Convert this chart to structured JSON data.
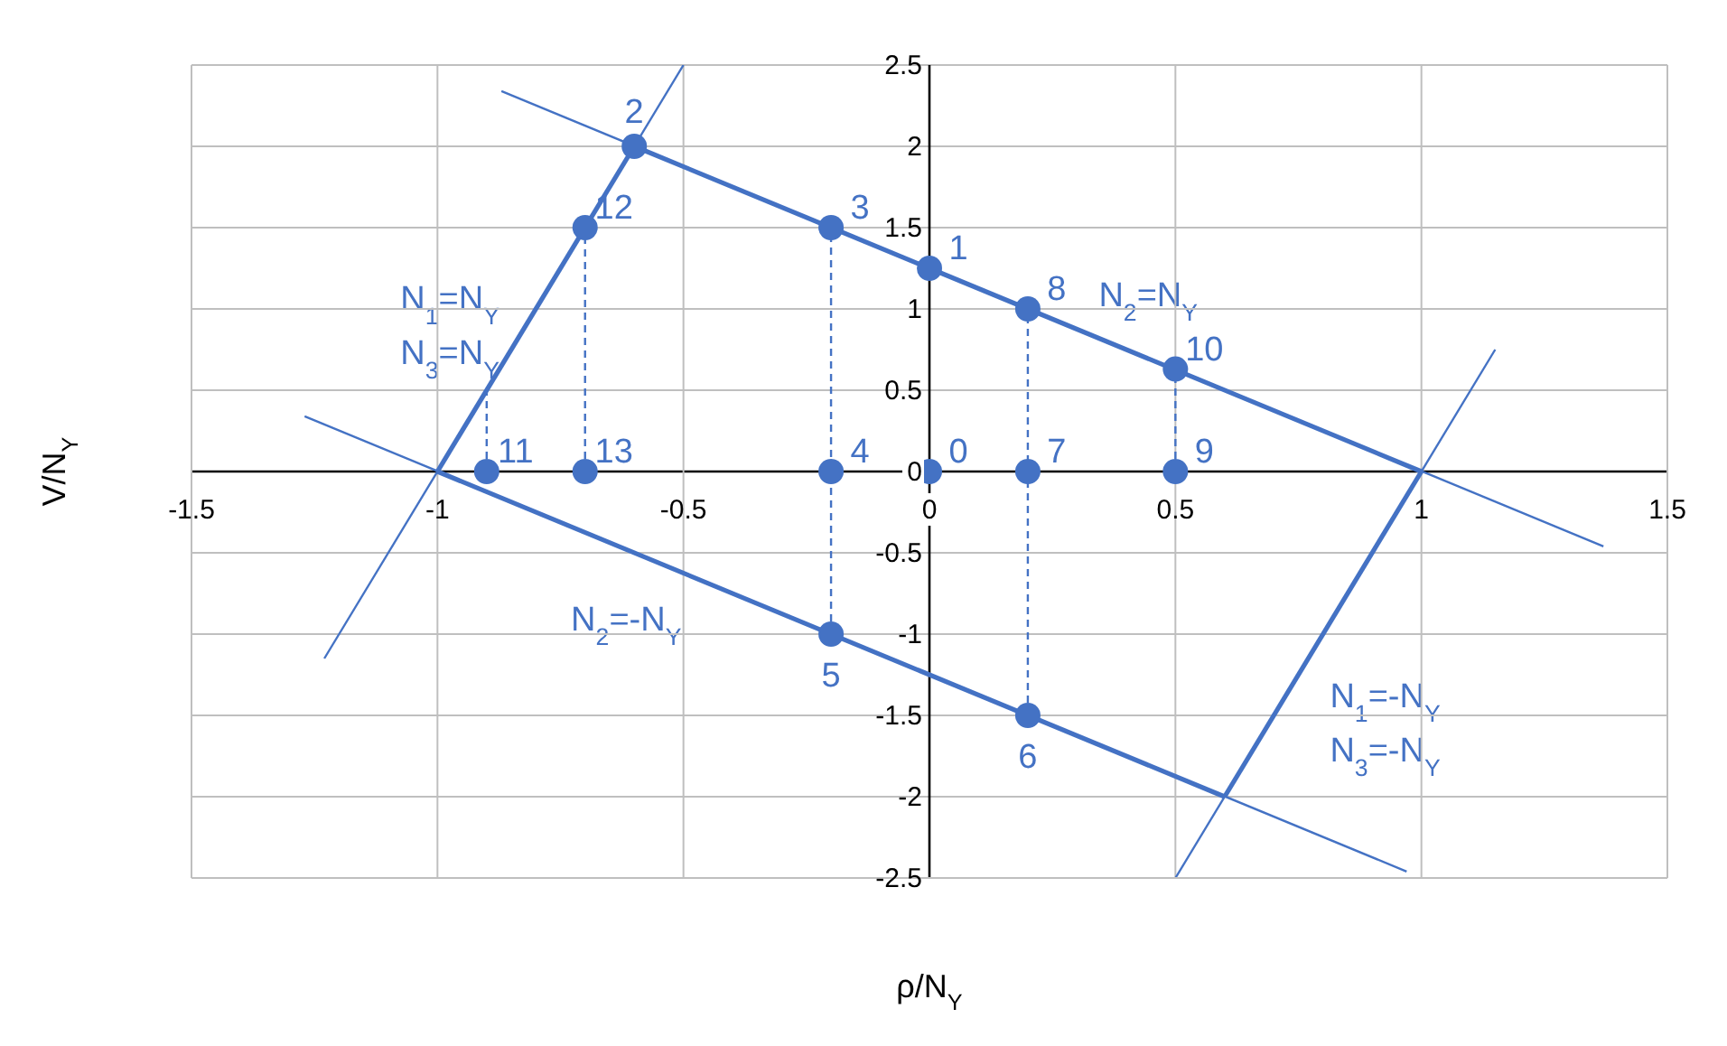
{
  "chart_data": {
    "type": "line",
    "xlabel": "ρ/N$_{Y}$",
    "ylabel": "V/N$_{Y}$",
    "xlim": [
      -1.5,
      1.5
    ],
    "xticks": [
      -1.5,
      -1,
      -0.5,
      0,
      0.5,
      1,
      1.5
    ],
    "ylim": [
      -2.5,
      2.5
    ],
    "yticks": [
      -2.5,
      -2,
      -1.5,
      -1,
      -0.5,
      0,
      0.5,
      1,
      1.5,
      2,
      2.5
    ],
    "grid": true,
    "series": [
      {
        "color": "#4472c4",
        "line_style": "solid",
        "marker": "none",
        "x": [
          -1,
          -0.6
        ],
        "values": [
          0,
          2
        ]
      },
      {
        "color": "#4472c4",
        "line_style": "solid",
        "marker": "none",
        "x": [
          -0.6,
          1
        ],
        "values": [
          2,
          0
        ]
      },
      {
        "color": "#4472c4",
        "line_style": "solid",
        "marker": "none",
        "x": [
          0.6,
          1
        ],
        "values": [
          -2,
          0
        ]
      },
      {
        "color": "#4472c4",
        "line_style": "solid",
        "marker": "none",
        "x": [
          -1,
          0.6
        ],
        "values": [
          0,
          -2
        ]
      },
      {
        "color": "#4472c4",
        "line_style": "solid",
        "marker": "none",
        "x": [
          -1.23,
          -0.5
        ],
        "values": [
          -1.15,
          2.5
        ]
      },
      {
        "color": "#4472c4",
        "line_style": "solid",
        "marker": "none",
        "x": [
          -0.87,
          1.37
        ],
        "values": [
          2.34,
          -0.46
        ]
      },
      {
        "color": "#4472c4",
        "line_style": "solid",
        "marker": "none",
        "x": [
          -1.27,
          0.97
        ],
        "values": [
          0.34,
          -2.46
        ]
      },
      {
        "color": "#4472c4",
        "line_style": "solid",
        "marker": "none",
        "x": [
          0.5,
          1.15
        ],
        "values": [
          -2.5,
          0.75
        ]
      },
      {
        "color": "#4472c4",
        "line_style": "dashed",
        "marker": "none",
        "x": [
          -0.9,
          -0.9
        ],
        "values": [
          0,
          0.5
        ]
      },
      {
        "color": "#4472c4",
        "line_style": "dashed",
        "marker": "none",
        "x": [
          -0.7,
          -0.7
        ],
        "values": [
          0,
          1.5
        ]
      },
      {
        "color": "#4472c4",
        "line_style": "dashed",
        "marker": "none",
        "x": [
          -0.2,
          -0.2
        ],
        "values": [
          -1,
          1.5
        ]
      },
      {
        "color": "#4472c4",
        "line_style": "dashed",
        "marker": "none",
        "x": [
          0.2,
          0.2
        ],
        "values": [
          -1.5,
          1
        ]
      },
      {
        "color": "#4472c4",
        "line_style": "dashed",
        "marker": "none",
        "x": [
          0.5,
          0.5
        ],
        "values": [
          0,
          0.63
        ]
      },
      {
        "type": "scatter",
        "color": "#4472c4",
        "marker": "circle",
        "x": [
          0,
          0,
          -0.6,
          -0.2,
          -0.2,
          -0.2,
          0.2,
          0.2,
          0.2,
          0.5,
          0.5,
          -0.9,
          -0.7,
          -0.7
        ],
        "values": [
          0,
          1.25,
          2,
          1.5,
          0,
          -1,
          -1.5,
          0,
          1,
          0,
          0.63,
          0,
          1.5,
          0
        ]
      }
    ],
    "annotations": [
      {
        "text": "0",
        "x": 0,
        "y": 0
      },
      {
        "text": "1",
        "x": 0,
        "y": 1.25
      },
      {
        "text": "2",
        "x": -0.6,
        "y": 2
      },
      {
        "text": "3",
        "x": -0.2,
        "y": 1.5
      },
      {
        "text": "4",
        "x": -0.2,
        "y": 0
      },
      {
        "text": "5",
        "x": -0.2,
        "y": -1
      },
      {
        "text": "6",
        "x": 0.2,
        "y": -1.5
      },
      {
        "text": "7",
        "x": 0.2,
        "y": 0
      },
      {
        "text": "8",
        "x": 0.2,
        "y": 1
      },
      {
        "text": "9",
        "x": 0.5,
        "y": 0
      },
      {
        "text": "10",
        "x": 0.5,
        "y": 0.63
      },
      {
        "text": "11",
        "x": -0.9,
        "y": 0
      },
      {
        "text": "12",
        "x": -0.7,
        "y": 1.5
      },
      {
        "text": "13",
        "x": -0.7,
        "y": 0
      },
      {
        "text": "N$_{1}$=N$_{Y}$",
        "x": -0.83,
        "y": 0.85
      },
      {
        "text": "N$_{3}$=N$_{Y}$",
        "x": -0.83,
        "y": 0.85
      },
      {
        "text": "N$_{2}$=N$_{Y}$",
        "x": 0.3,
        "y": 0.875
      },
      {
        "text": "N$_{2}$=-N$_{Y}$",
        "x": -0.46,
        "y": -0.675
      },
      {
        "text": "N$_{1}$=-N$_{Y}$",
        "x": 0.77,
        "y": -1.15
      },
      {
        "text": "N$_{3}$=-N$_{Y}$",
        "x": 0.77,
        "y": -1.15
      }
    ]
  }
}
